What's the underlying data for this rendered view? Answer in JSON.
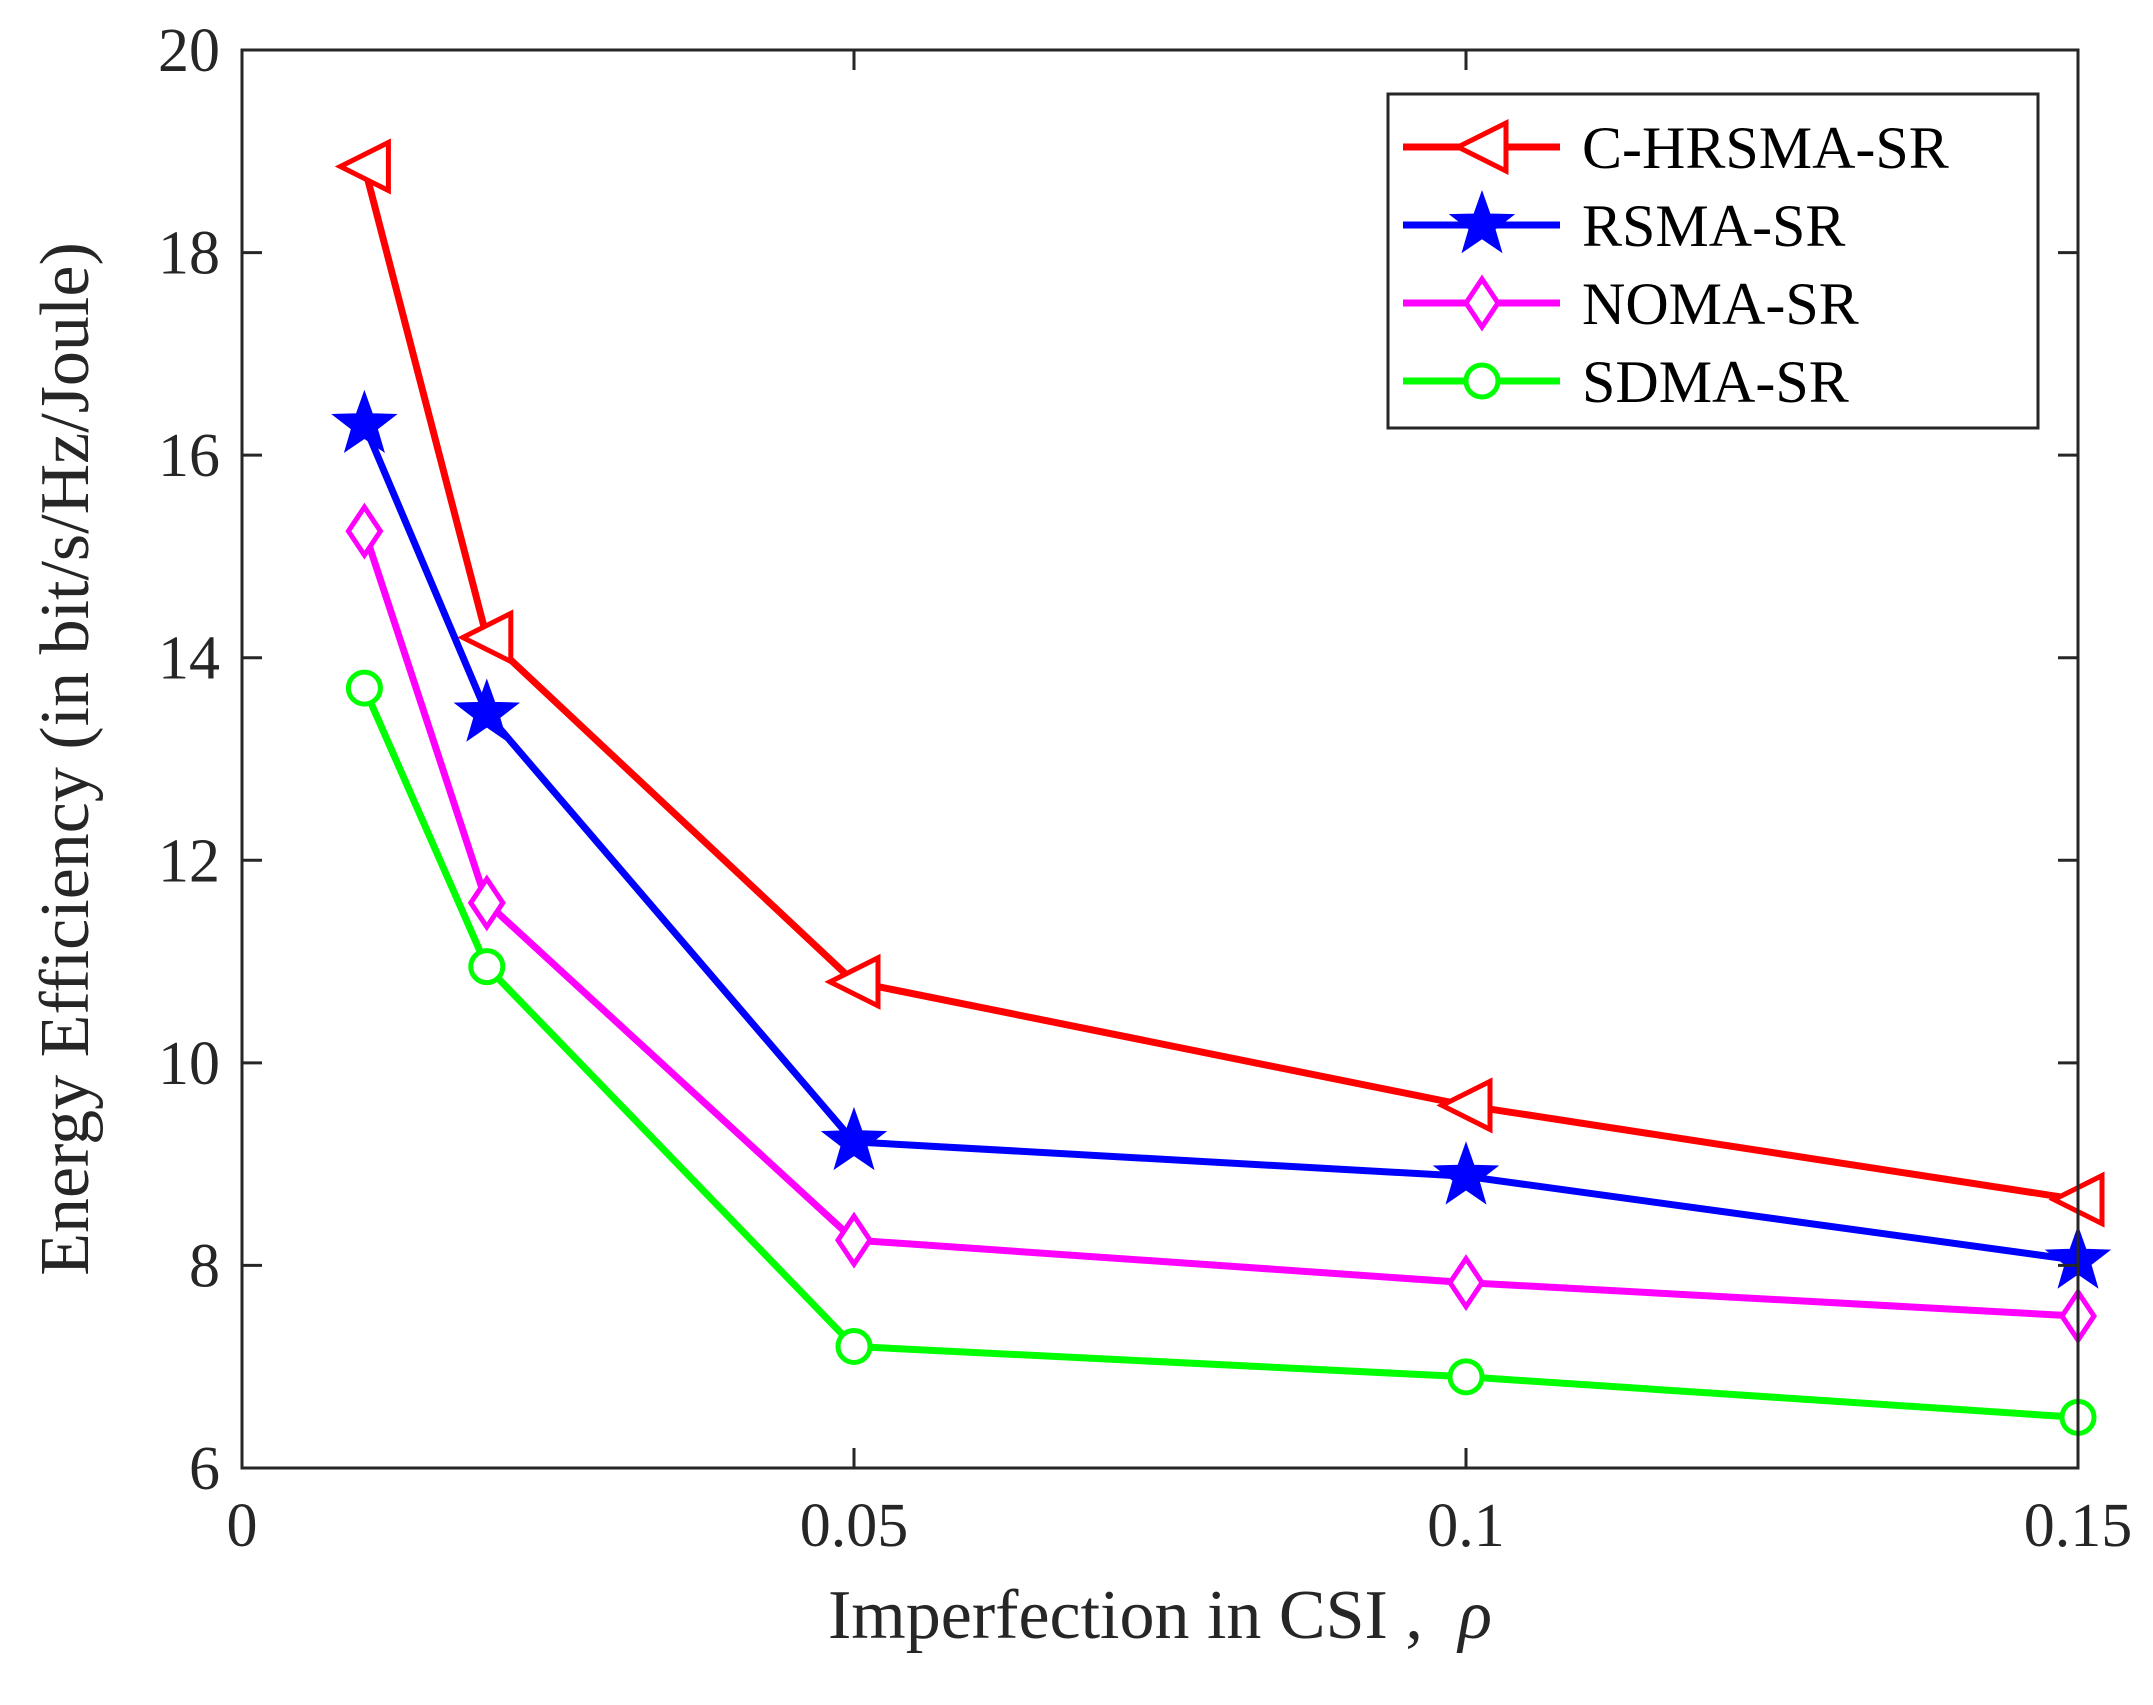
{
  "chart_data": {
    "type": "line",
    "title": "",
    "xlabel": "Imperfection in CSI ,",
    "xlabel_symbol": "ρ",
    "ylabel": "Energy Efficiency (in bit/s/Hz/Joule)",
    "xlim": [
      0,
      0.15
    ],
    "ylim": [
      6,
      20
    ],
    "xticks": [
      0,
      0.05,
      0.1,
      0.15
    ],
    "xtick_labels": [
      "0",
      "0.05",
      "0.1",
      "0.15"
    ],
    "yticks": [
      6,
      8,
      10,
      12,
      14,
      16,
      18,
      20
    ],
    "ytick_labels": [
      "6",
      "8",
      "10",
      "12",
      "14",
      "16",
      "18",
      "20"
    ],
    "grid": false,
    "legend_position": "top-right",
    "x": [
      0.01,
      0.02,
      0.05,
      0.1,
      0.15
    ],
    "series": [
      {
        "name": "C-HRSMA-SR",
        "color": "#ff0000",
        "marker": "triangle-left",
        "values": [
          18.85,
          14.2,
          10.8,
          9.58,
          8.65
        ]
      },
      {
        "name": "RSMA-SR",
        "color": "#0000ff",
        "marker": "star",
        "values": [
          16.3,
          13.45,
          9.22,
          8.88,
          8.05
        ]
      },
      {
        "name": "NOMA-SR",
        "color": "#ff00ff",
        "marker": "diamond",
        "values": [
          15.25,
          11.58,
          8.25,
          7.83,
          7.5
        ]
      },
      {
        "name": "SDMA-SR",
        "color": "#00ff00",
        "marker": "circle",
        "values": [
          13.7,
          10.95,
          7.2,
          6.9,
          6.5
        ]
      }
    ]
  }
}
